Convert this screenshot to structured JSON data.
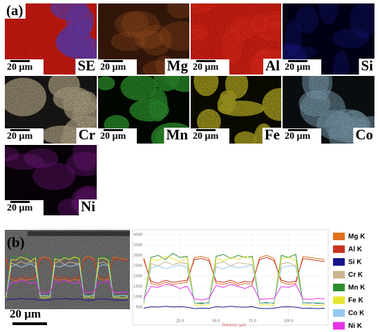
{
  "panel_a": {
    "label": "(a)",
    "scale_bar": "20 µm",
    "tiles": [
      {
        "element": "SE"
      },
      {
        "element": "Mg"
      },
      {
        "element": "Al"
      },
      {
        "element": "Si"
      },
      {
        "element": "Cr"
      },
      {
        "element": "Mn"
      },
      {
        "element": "Fe"
      },
      {
        "element": "Co"
      },
      {
        "element": "Ni"
      }
    ]
  },
  "panel_b": {
    "label": "(b)",
    "scale_bar": "20 µm"
  },
  "chart_data": {
    "type": "line",
    "xlabel": "Distance (µm)",
    "x": [
      0,
      5,
      10,
      15,
      20,
      25,
      30,
      35,
      40,
      45,
      50,
      55,
      60,
      65,
      70,
      75,
      80,
      85,
      90,
      95,
      100,
      105,
      110,
      115,
      120,
      125
    ],
    "xlim": [
      0,
      125
    ],
    "xticks": [
      {
        "value": 25,
        "label": "25.0"
      },
      {
        "value": 50,
        "label": "50.0"
      },
      {
        "value": 75,
        "label": "75.0"
      },
      {
        "value": 100,
        "label": "100.0"
      }
    ],
    "ylim": [
      0,
      4000
    ],
    "yticks": [
      500,
      1000,
      1500,
      2000,
      2500,
      3000,
      3500,
      4000
    ],
    "grid": true,
    "series": [
      {
        "name": "Mg K",
        "color": "#e0701e",
        "values": [
          2900,
          1650,
          1550,
          1700,
          1600,
          1650,
          1700,
          2900,
          2950,
          2850,
          1650,
          1600,
          1700,
          1550,
          1650,
          1600,
          2900,
          3000,
          2850,
          1700,
          1600,
          1650,
          2950,
          2900,
          2850,
          2800
        ]
      },
      {
        "name": "Al K",
        "color": "#c8321e",
        "values": [
          2800,
          1750,
          1650,
          1800,
          1700,
          1750,
          1800,
          2800,
          2850,
          2750,
          1750,
          1700,
          1800,
          1650,
          1750,
          1700,
          2800,
          2900,
          2750,
          1800,
          1700,
          1750,
          2850,
          2800,
          2750,
          2700
        ]
      },
      {
        "name": "Si K",
        "color": "#16168a",
        "values": [
          450,
          520,
          500,
          540,
          510,
          520,
          500,
          430,
          450,
          440,
          520,
          500,
          540,
          510,
          500,
          520,
          440,
          430,
          450,
          510,
          520,
          500,
          440,
          450,
          430,
          450
        ]
      },
      {
        "name": "Cr K",
        "color": "#c8b48c",
        "values": [
          700,
          2600,
          2500,
          2700,
          2550,
          2650,
          2600,
          700,
          650,
          720,
          2600,
          2700,
          2500,
          2650,
          2600,
          2550,
          680,
          700,
          720,
          2600,
          2650,
          2500,
          700,
          680,
          720,
          650
        ]
      },
      {
        "name": "Mn K",
        "color": "#2c8c2c",
        "values": [
          700,
          2900,
          3000,
          2800,
          3100,
          2900,
          2950,
          700,
          680,
          720,
          2950,
          3050,
          2850,
          3000,
          2900,
          2950,
          700,
          720,
          680,
          3000,
          2900,
          3050,
          700,
          720,
          680,
          700
        ]
      },
      {
        "name": "Fe K",
        "color": "#e6e632",
        "values": [
          600,
          2800,
          2750,
          2950,
          2850,
          2700,
          2900,
          600,
          580,
          620,
          2850,
          2750,
          2900,
          2800,
          2950,
          2850,
          600,
          620,
          580,
          2850,
          2900,
          2750,
          620,
          600,
          580,
          600
        ]
      },
      {
        "name": "Co K",
        "color": "#96c8f0",
        "values": [
          700,
          2400,
          2500,
          2350,
          2450,
          2550,
          2400,
          700,
          720,
          680,
          2450,
          2350,
          2500,
          2400,
          2450,
          2550,
          700,
          680,
          720,
          2400,
          2500,
          2450,
          680,
          700,
          720,
          700
        ]
      },
      {
        "name": "Ni K",
        "color": "#e632e6",
        "values": [
          900,
          1500,
          1450,
          1600,
          1550,
          1400,
          1500,
          900,
          850,
          920,
          1550,
          1450,
          1600,
          1500,
          1400,
          1550,
          880,
          900,
          920,
          1500,
          1450,
          1600,
          900,
          880,
          920,
          900
        ]
      }
    ]
  }
}
